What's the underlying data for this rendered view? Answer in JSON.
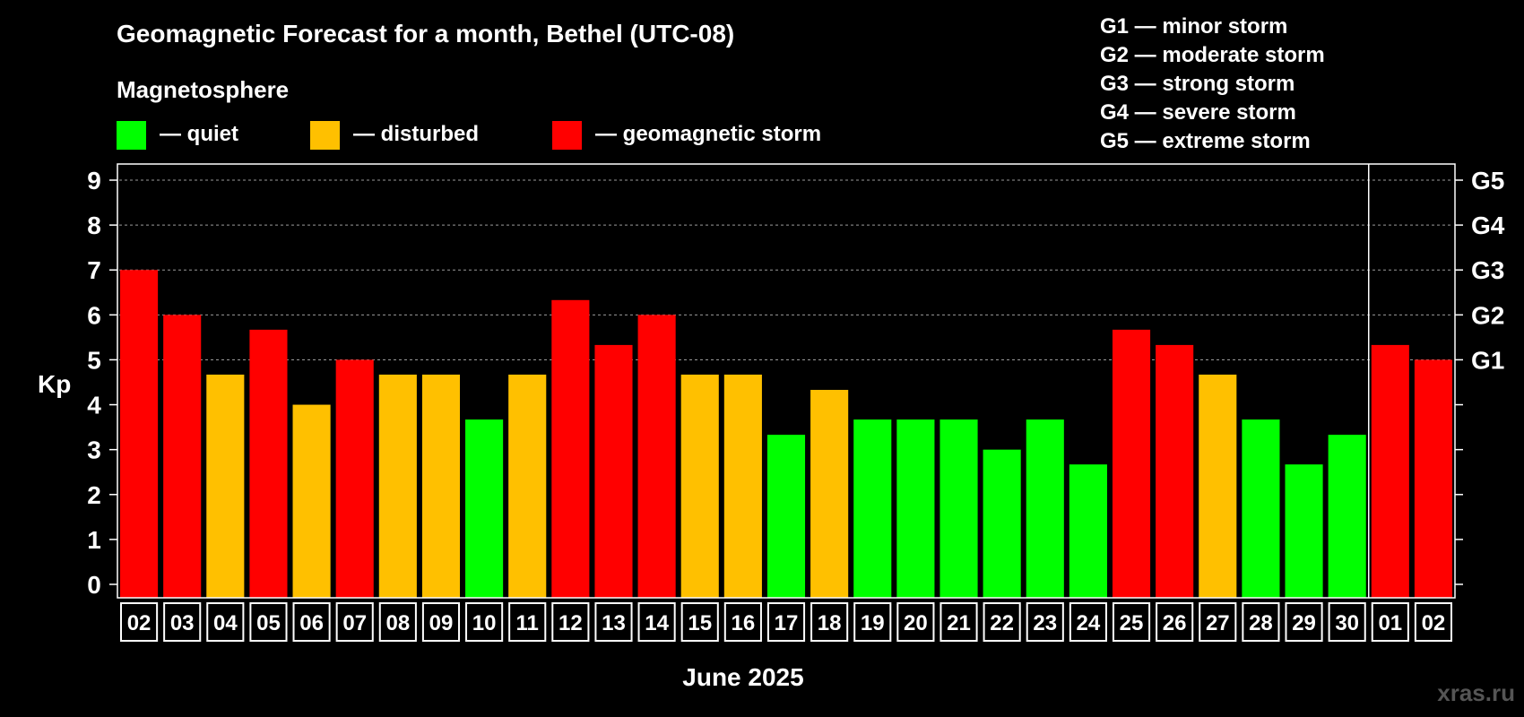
{
  "chart_data": {
    "type": "bar",
    "title": "Geomagnetic Forecast for a month, Bethel (UTC-08)",
    "legend_title": "Magnetosphere",
    "legend": [
      {
        "label": "— quiet",
        "color": "#00ff00"
      },
      {
        "label": "— disturbed",
        "color": "#ffc000"
      },
      {
        "label": "— geomagnetic storm",
        "color": "#ff0000"
      }
    ],
    "storm_scale": [
      "G1 — minor storm",
      "G2 — moderate storm",
      "G3 — strong storm",
      "G4 — severe storm",
      "G5 — extreme storm"
    ],
    "ylabel": "Kp",
    "xlabel": "June 2025",
    "ylim": [
      0,
      9
    ],
    "yticks": [
      "0",
      "1",
      "2",
      "3",
      "4",
      "5",
      "6",
      "7",
      "8",
      "9"
    ],
    "right_ticks": [
      {
        "value": 5,
        "label": "G1"
      },
      {
        "value": 6,
        "label": "G2"
      },
      {
        "value": 7,
        "label": "G3"
      },
      {
        "value": 8,
        "label": "G4"
      },
      {
        "value": 9,
        "label": "G5"
      }
    ],
    "grid_values": [
      5,
      6,
      7,
      8,
      9
    ],
    "month_separator_after_index": 28,
    "categories": [
      "02",
      "03",
      "04",
      "05",
      "06",
      "07",
      "08",
      "09",
      "10",
      "11",
      "12",
      "13",
      "14",
      "15",
      "16",
      "17",
      "18",
      "19",
      "20",
      "21",
      "22",
      "23",
      "24",
      "25",
      "26",
      "27",
      "28",
      "29",
      "30",
      "01",
      "02"
    ],
    "values": [
      7.0,
      6.0,
      4.67,
      5.67,
      4.0,
      5.0,
      4.67,
      4.67,
      3.67,
      4.67,
      6.33,
      5.33,
      6.0,
      4.67,
      4.67,
      3.33,
      4.33,
      3.67,
      3.67,
      3.67,
      3.0,
      3.67,
      2.67,
      5.67,
      5.33,
      4.67,
      3.67,
      2.67,
      3.33,
      5.33,
      5.0
    ],
    "bar_colors": [
      "#ff0000",
      "#ff0000",
      "#ffc000",
      "#ff0000",
      "#ffc000",
      "#ff0000",
      "#ffc000",
      "#ffc000",
      "#00ff00",
      "#ffc000",
      "#ff0000",
      "#ff0000",
      "#ff0000",
      "#ffc000",
      "#ffc000",
      "#00ff00",
      "#ffc000",
      "#00ff00",
      "#00ff00",
      "#00ff00",
      "#00ff00",
      "#00ff00",
      "#00ff00",
      "#ff0000",
      "#ff0000",
      "#ffc000",
      "#00ff00",
      "#00ff00",
      "#00ff00",
      "#ff0000",
      "#ff0000"
    ]
  },
  "watermark": "xras.ru"
}
